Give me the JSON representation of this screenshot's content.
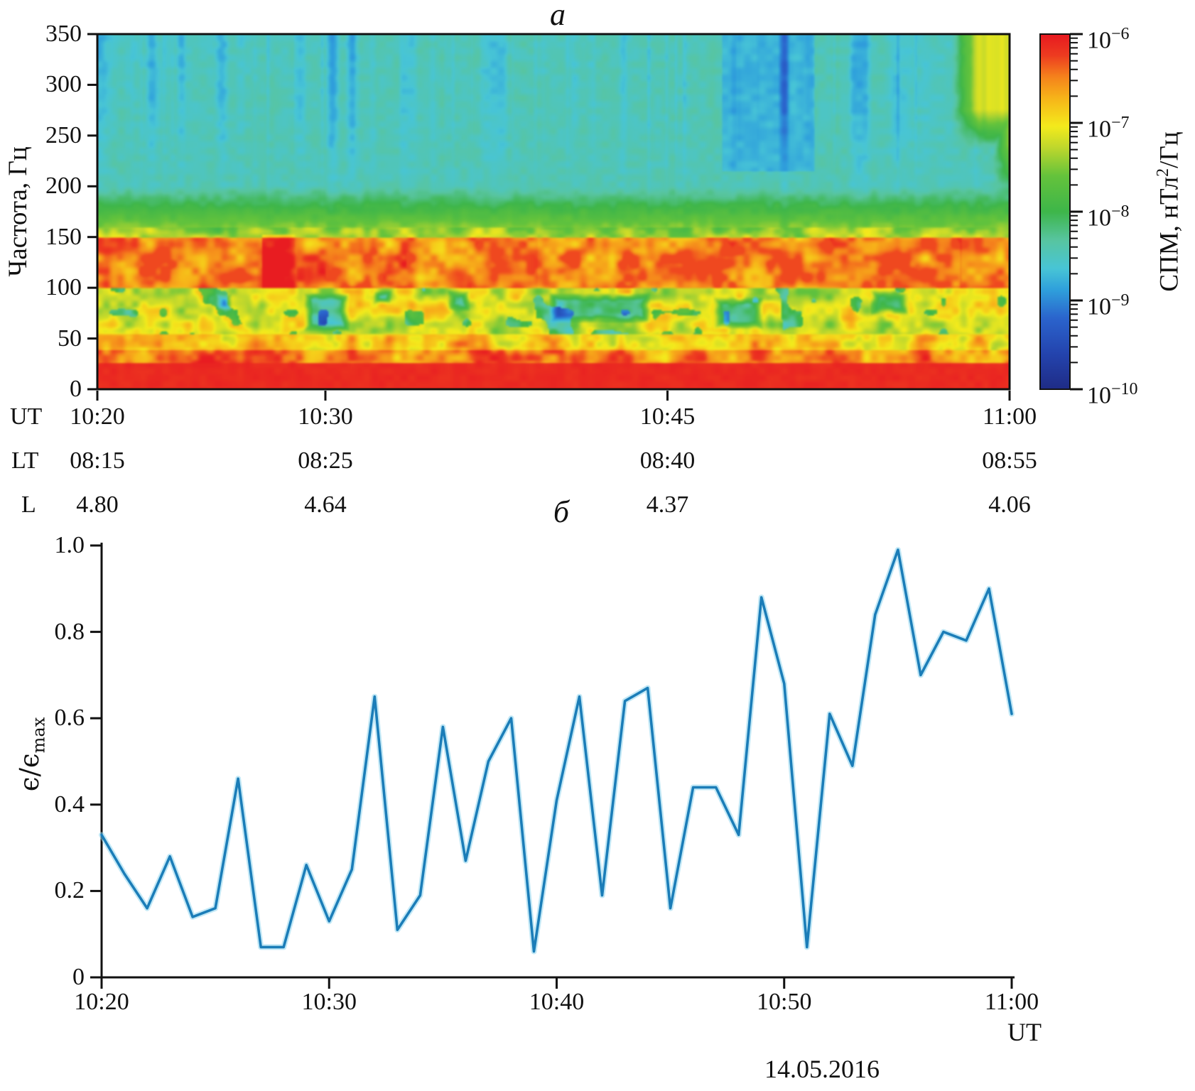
{
  "figure": {
    "panel_a_label": "a",
    "panel_b_label": "б",
    "date": "14.05.2016",
    "accent_line_color": "#1b7db8",
    "line_halo_color": "#8fd6ef"
  },
  "panel_a": {
    "ylabel": "Частота, Гц",
    "y_ticks": [
      0,
      50,
      100,
      150,
      200,
      250,
      300,
      350
    ],
    "time_axis": {
      "row_headers": [
        "UT",
        "LT",
        "L"
      ],
      "columns": [
        {
          "minute": 0,
          "ut": "10:20",
          "lt": "08:15",
          "l": "4.80"
        },
        {
          "minute": 10,
          "ut": "10:30",
          "lt": "08:25",
          "l": "4.64"
        },
        {
          "minute": 25,
          "ut": "10:45",
          "lt": "08:40",
          "l": "4.37"
        },
        {
          "minute": 40,
          "ut": "11:00",
          "lt": "08:55",
          "l": "4.06"
        }
      ]
    },
    "colorbar": {
      "label_prefix": "СПМ, нТл",
      "label_sup": "2",
      "label_suffix": "/Гц",
      "tick_base": "10",
      "tick_exponents": [
        "−6",
        "−7",
        "−8",
        "−9",
        "−10"
      ],
      "gradient": [
        {
          "p": 0.0,
          "c": "#1f2c86"
        },
        {
          "p": 0.1,
          "c": "#2444ae"
        },
        {
          "p": 0.2,
          "c": "#2b64cd"
        },
        {
          "p": 0.28,
          "c": "#2fa0dc"
        },
        {
          "p": 0.34,
          "c": "#48c5d6"
        },
        {
          "p": 0.42,
          "c": "#58c5a0"
        },
        {
          "p": 0.5,
          "c": "#3eb64a"
        },
        {
          "p": 0.6,
          "c": "#64c33c"
        },
        {
          "p": 0.68,
          "c": "#bed72d"
        },
        {
          "p": 0.74,
          "c": "#f4eb1c"
        },
        {
          "p": 0.82,
          "c": "#f7b419"
        },
        {
          "p": 0.88,
          "c": "#f5821c"
        },
        {
          "p": 0.94,
          "c": "#ee3c20"
        },
        {
          "p": 1.0,
          "c": "#e71921"
        }
      ]
    }
  },
  "chart_data": [
    {
      "type": "heatmap",
      "title": "a",
      "ylabel": "Частота, Гц",
      "xlabel_rows": [
        "UT",
        "LT",
        "L"
      ],
      "x_range_ut": [
        "10:20",
        "11:00"
      ],
      "ylim": [
        0,
        350
      ],
      "colorbar_label": "СПМ, нТл2/Гц",
      "colorbar_ticks": [
        "1e-6",
        "1e-7",
        "1e-8",
        "1e-9",
        "1e-10"
      ],
      "description": "ELF spectrogram: intense band 100-150 Hz with quasi-periodic rising bursts up to ~200 Hz; diffuse emission below 100 Hz; solid intense band below ~30 Hz; green background (~1e-8) above 200 Hz with cyan streaks; yellowing above 250 Hz near 11:00",
      "bursts_minutes_fmax": [
        {
          "t": 3.2,
          "f": 190
        },
        {
          "t": 6.5,
          "f": 183
        },
        {
          "t": 11.4,
          "f": 194
        },
        {
          "t": 14.9,
          "f": 188
        },
        {
          "t": 17.7,
          "f": 196
        },
        {
          "t": 20.2,
          "f": 188
        },
        {
          "t": 22.9,
          "f": 197,
          "w": 0.8
        },
        {
          "t": 24.5,
          "f": 190
        },
        {
          "t": 26.8,
          "f": 179
        },
        {
          "t": 29.2,
          "f": 199,
          "w": 0.7
        },
        {
          "t": 31.1,
          "f": 192
        },
        {
          "t": 33.6,
          "f": 190
        },
        {
          "t": 35.3,
          "f": 197,
          "w": 0.7
        },
        {
          "t": 36.7,
          "f": 186
        },
        {
          "t": 38.6,
          "f": 197
        },
        {
          "t": 39.7,
          "f": 193
        }
      ],
      "green_patches": [
        {
          "t0": 9.2,
          "t1": 11.2,
          "f0": 58,
          "f1": 96
        },
        {
          "t0": 5.4,
          "t1": 6.1,
          "f0": 78,
          "f1": 95
        },
        {
          "t0": 12.2,
          "t1": 13.0,
          "f0": 85,
          "f1": 98
        },
        {
          "t0": 15.4,
          "t1": 16.4,
          "f0": 78,
          "f1": 99
        },
        {
          "t0": 19.8,
          "t1": 24.2,
          "f0": 66,
          "f1": 96
        },
        {
          "t0": 26.9,
          "t1": 29.1,
          "f0": 60,
          "f1": 92
        },
        {
          "t0": 33.7,
          "t1": 35.4,
          "f0": 74,
          "f1": 99
        }
      ],
      "cyan_zone_minutes": [
        27.3,
        31.3
      ],
      "yellow_zone_start_minute": 37.2
    },
    {
      "type": "line",
      "title": "б",
      "ylabel": "ε/ε_max",
      "xlabel": "UT",
      "date": "14.05.2016",
      "ylim": [
        0,
        1.0
      ],
      "y_ticks": [
        0,
        0.2,
        0.4,
        0.6,
        0.8,
        1.0
      ],
      "y_tick_labels": [
        "0",
        "0.2",
        "0.4",
        "0.6",
        "0.8",
        "1.0"
      ],
      "x_ticks": [
        {
          "minute": 0,
          "label": "10:20"
        },
        {
          "minute": 10,
          "label": "10:30"
        },
        {
          "minute": 20,
          "label": "10:40"
        },
        {
          "minute": 30,
          "label": "10:50"
        },
        {
          "minute": 40,
          "label": "11:00"
        }
      ],
      "minutes_after_1020": [
        0,
        1,
        2,
        3,
        4,
        5,
        6,
        7,
        8,
        9,
        10,
        11,
        12,
        13,
        14,
        15,
        16,
        17,
        18,
        19,
        20,
        21,
        22,
        23,
        24,
        25,
        26,
        27,
        28,
        29,
        30,
        31,
        32,
        33,
        34,
        35,
        36,
        37,
        38,
        39,
        40
      ],
      "values": [
        0.33,
        0.24,
        0.16,
        0.28,
        0.14,
        0.16,
        0.46,
        0.07,
        0.07,
        0.26,
        0.13,
        0.25,
        0.65,
        0.11,
        0.19,
        0.58,
        0.27,
        0.5,
        0.6,
        0.06,
        0.41,
        0.65,
        0.19,
        0.64,
        0.67,
        0.16,
        0.44,
        0.44,
        0.33,
        0.88,
        0.68,
        0.07,
        0.61,
        0.49,
        0.84,
        0.99,
        0.7,
        0.8,
        0.78,
        0.9,
        0.61
      ]
    }
  ],
  "panel_b": {
    "ylabel_prefix": "ϵ/ϵ",
    "ylabel_sub": "max",
    "xlabel": "UT"
  }
}
